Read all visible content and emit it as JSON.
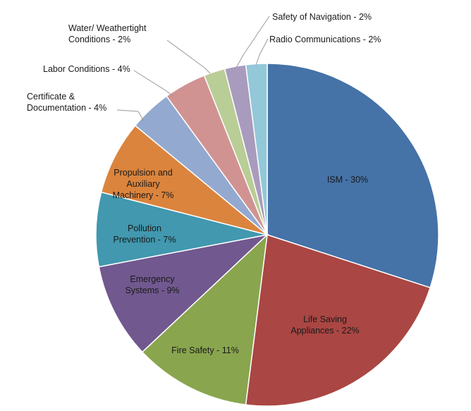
{
  "chart_data": {
    "type": "pie",
    "title": "",
    "slices": [
      {
        "label": "ISM - 30%",
        "lines": [
          "ISM - 30%"
        ],
        "value": 30,
        "color": "#4572a7"
      },
      {
        "label": "Life Saving Appliances - 22%",
        "lines": [
          "Life Saving",
          "Appliances - 22%"
        ],
        "value": 22,
        "color": "#aa4643"
      },
      {
        "label": "Fire Safety - 11%",
        "lines": [
          "Fire Safety - 11%"
        ],
        "value": 11,
        "color": "#89a54e"
      },
      {
        "label": "Emergency Systems - 9%",
        "lines": [
          "Emergency",
          "Systems - 9%"
        ],
        "value": 9,
        "color": "#71588f"
      },
      {
        "label": "Pollution Prevention - 7%",
        "lines": [
          "Pollution",
          "Prevention - 7%"
        ],
        "value": 7,
        "color": "#4198af"
      },
      {
        "label": "Propulsion and Auxiliary Machinery - 7%",
        "lines": [
          "Propulsion and",
          "Auxiliary",
          "Machinery - 7%"
        ],
        "value": 7,
        "color": "#db843d"
      },
      {
        "label": "Certificate & Documentation - 4%",
        "lines": [
          "Certificate &",
          "Documentation - 4%"
        ],
        "value": 4,
        "color": "#93a9cf"
      },
      {
        "label": "Labor Conditions - 4%",
        "lines": [
          "Labor Conditions - 4%"
        ],
        "value": 4,
        "color": "#d19392"
      },
      {
        "label": "Water/ Weathertight Conditions - 2%",
        "lines": [
          "Water/ Weathertight",
          "Conditions - 2%"
        ],
        "value": 2,
        "color": "#b9cd96"
      },
      {
        "label": "Safety of Navigation - 2%",
        "lines": [
          "Safety of Navigation - 2%"
        ],
        "value": 2,
        "color": "#a99bbd"
      },
      {
        "label": "Radio Communications - 2%",
        "lines": [
          "Radio Communications - 2%"
        ],
        "value": 2,
        "color": "#92c8d8"
      }
    ],
    "legend": "none",
    "label_placement": "inside for large slices, outside with leader lines for small slices"
  }
}
